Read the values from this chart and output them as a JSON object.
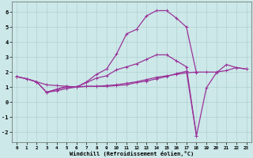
{
  "xlabel": "Windchill (Refroidissement éolien,°C)",
  "xlim": [
    -0.5,
    23.5
  ],
  "ylim": [
    -2.7,
    6.7
  ],
  "yticks": [
    -2,
    -1,
    0,
    1,
    2,
    3,
    4,
    5,
    6
  ],
  "xticks": [
    0,
    1,
    2,
    3,
    4,
    5,
    6,
    7,
    8,
    9,
    10,
    11,
    12,
    13,
    14,
    15,
    16,
    17,
    18,
    19,
    20,
    21,
    22,
    23
  ],
  "background_color": "#cce8e8",
  "grid_color": "#aacccc",
  "line_color": "#993399",
  "line_width": 0.9,
  "marker_size": 3,
  "curve1_x": [
    0,
    1,
    2,
    3,
    4,
    5,
    6,
    7,
    8,
    9,
    10,
    11,
    12,
    13,
    14,
    15,
    16,
    17,
    18,
    19,
    20,
    21,
    22,
    23
  ],
  "curve1_y": [
    1.7,
    1.55,
    1.35,
    1.15,
    1.1,
    1.05,
    1.0,
    1.05,
    1.05,
    1.1,
    1.15,
    1.25,
    1.35,
    1.5,
    1.65,
    1.75,
    1.85,
    1.95,
    2.0,
    2.0,
    2.0,
    2.1,
    2.3,
    2.2
  ],
  "curve2_x": [
    0,
    1,
    2,
    3,
    4,
    5,
    6,
    7,
    8,
    9,
    10,
    11,
    12,
    13,
    14,
    15,
    16,
    17,
    18
  ],
  "curve2_y": [
    1.7,
    1.55,
    1.35,
    0.65,
    0.85,
    1.05,
    1.0,
    1.35,
    1.85,
    2.2,
    3.2,
    4.55,
    4.85,
    5.75,
    6.1,
    6.1,
    5.6,
    5.0,
    1.95
  ],
  "curve3_x": [
    0,
    1,
    2,
    3,
    4,
    5,
    6,
    7,
    8,
    9,
    10,
    11,
    12,
    13,
    14,
    15,
    16,
    17,
    18
  ],
  "curve3_y": [
    1.7,
    1.55,
    1.35,
    0.65,
    0.85,
    1.0,
    1.0,
    1.3,
    1.6,
    1.75,
    2.15,
    2.35,
    2.55,
    2.85,
    3.15,
    3.15,
    2.75,
    2.35,
    -2.25
  ],
  "curve4_x": [
    3,
    4,
    5,
    6,
    7,
    8,
    9,
    10,
    11,
    12,
    13,
    14,
    15,
    16,
    17,
    18,
    19,
    20,
    21,
    22,
    23
  ],
  "curve4_y": [
    0.65,
    0.75,
    0.9,
    1.0,
    1.05,
    1.05,
    1.05,
    1.1,
    1.15,
    1.3,
    1.4,
    1.55,
    1.7,
    1.9,
    2.05,
    -2.25,
    0.95,
    1.95,
    2.5,
    2.3,
    2.2
  ]
}
